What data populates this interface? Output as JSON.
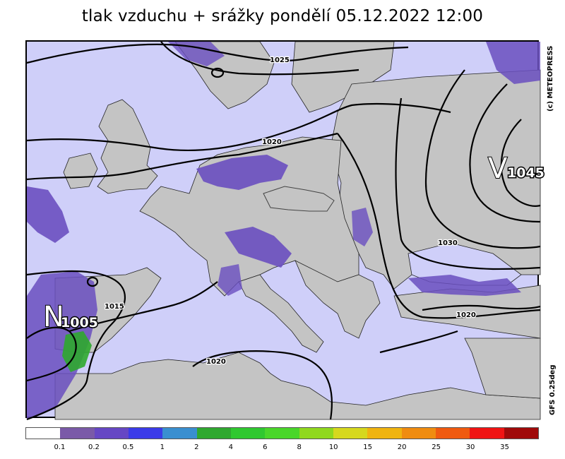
{
  "title": "tlak vzduchu + srážky pondělí 05.12.2022 12:00",
  "copyright": "(c) METEOPRESS",
  "model": "GFS 0.25deg",
  "colors": {
    "sea": "#cfcff9",
    "land": "#c4c4c4",
    "isobar": "#000000"
  },
  "isobar_labels": [
    "1025",
    "1020",
    "1015",
    "1030",
    "1020",
    "1020"
  ],
  "pressure_centers": [
    {
      "letter": "V",
      "value": "1045",
      "type": "high"
    },
    {
      "letter": "N",
      "value": "1005",
      "type": "low"
    }
  ],
  "legend": {
    "ticks": [
      "0.1",
      "0.2",
      "0.5",
      "1",
      "2",
      "4",
      "6",
      "8",
      "10",
      "15",
      "20",
      "25",
      "30",
      "35"
    ],
    "colors": [
      "#ffffff",
      "#7a5aa8",
      "#6647c4",
      "#3b3be8",
      "#3a8fd0",
      "#30a830",
      "#30c830",
      "#4ad62a",
      "#90d81e",
      "#d6d81e",
      "#f0b410",
      "#f08c10",
      "#f05a10",
      "#f01414",
      "#a00a0a"
    ]
  }
}
